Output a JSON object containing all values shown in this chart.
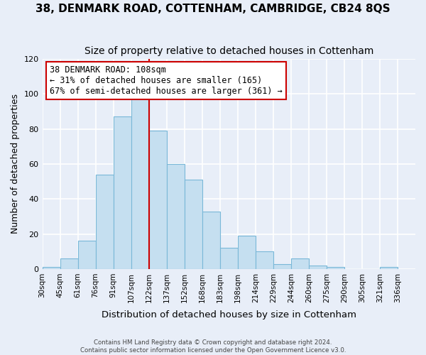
{
  "title": "38, DENMARK ROAD, COTTENHAM, CAMBRIDGE, CB24 8QS",
  "subtitle": "Size of property relative to detached houses in Cottenham",
  "xlabel": "Distribution of detached houses by size in Cottenham",
  "ylabel": "Number of detached properties",
  "bin_labels": [
    "30sqm",
    "45sqm",
    "61sqm",
    "76sqm",
    "91sqm",
    "107sqm",
    "122sqm",
    "137sqm",
    "152sqm",
    "168sqm",
    "183sqm",
    "198sqm",
    "214sqm",
    "229sqm",
    "244sqm",
    "260sqm",
    "275sqm",
    "290sqm",
    "305sqm",
    "321sqm",
    "336sqm"
  ],
  "bar_heights": [
    1,
    6,
    16,
    54,
    87,
    98,
    79,
    60,
    51,
    33,
    12,
    19,
    10,
    3,
    6,
    2,
    1,
    0,
    0,
    1
  ],
  "bar_color": "#c5dff0",
  "bar_edge_color": "#7ab8d8",
  "vline_x_index": 5,
  "vline_color": "#cc0000",
  "ylim": [
    0,
    120
  ],
  "yticks": [
    0,
    20,
    40,
    60,
    80,
    100,
    120
  ],
  "annotation_title": "38 DENMARK ROAD: 108sqm",
  "annotation_line1": "← 31% of detached houses are smaller (165)",
  "annotation_line2": "67% of semi-detached houses are larger (361) →",
  "annotation_box_color": "#ffffff",
  "annotation_box_edge": "#cc0000",
  "footer1": "Contains HM Land Registry data © Crown copyright and database right 2024.",
  "footer2": "Contains public sector information licensed under the Open Government Licence v3.0.",
  "background_color": "#e8eef8",
  "grid_color": "#ffffff",
  "title_fontsize": 11,
  "subtitle_fontsize": 10,
  "xlabel_fontsize": 9.5,
  "ylabel_fontsize": 9
}
